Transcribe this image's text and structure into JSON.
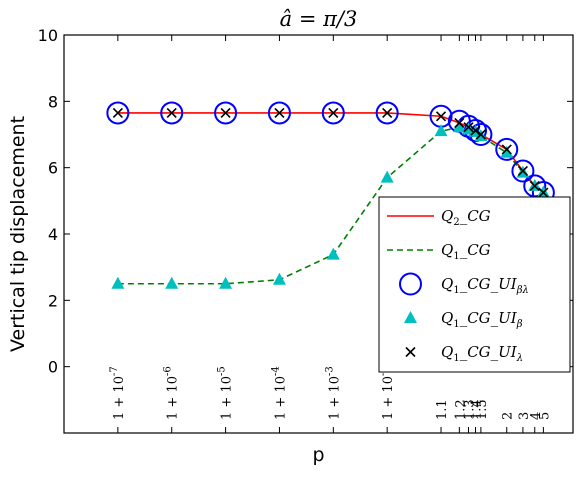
{
  "chart_data": {
    "type": "line",
    "title": "â = π/3",
    "xlabel": "p",
    "ylabel": "Vertical tip displacement",
    "ylim": [
      -2,
      10
    ],
    "yticks": [
      0,
      2,
      4,
      6,
      8,
      10
    ],
    "grid": false,
    "legend_position": "bottom-right",
    "categories": [
      "1+10^-7",
      "1+10^-6",
      "1+10^-5",
      "1+10^-4",
      "1+10^-3",
      "1+10^-2",
      "1.1",
      "1.2",
      "1.3",
      "1.4",
      "1.5",
      "2",
      "3",
      "4",
      "5"
    ],
    "category_labels": [
      {
        "base": "1 + 10",
        "exp": "-7"
      },
      {
        "base": "1 + 10",
        "exp": "-6"
      },
      {
        "base": "1 + 10",
        "exp": "-5"
      },
      {
        "base": "1 + 10",
        "exp": "-4"
      },
      {
        "base": "1 + 10",
        "exp": "-3"
      },
      {
        "base": "1 + 10",
        "exp": "-2"
      },
      {
        "base": "1.1",
        "exp": ""
      },
      {
        "base": "1.2",
        "exp": ""
      },
      {
        "base": "1.3",
        "exp": ""
      },
      {
        "base": "1.4",
        "exp": ""
      },
      {
        "base": "1.5",
        "exp": ""
      },
      {
        "base": "2",
        "exp": ""
      },
      {
        "base": "3",
        "exp": ""
      },
      {
        "base": "4",
        "exp": ""
      },
      {
        "base": "5",
        "exp": ""
      }
    ],
    "x_positions": [
      -7,
      -6,
      -5,
      -4,
      -3,
      -2,
      -1,
      -0.66,
      -0.49,
      -0.36,
      -0.26,
      0.22,
      0.52,
      0.74,
      0.9
    ],
    "xlim": [
      -8.0,
      1.45
    ],
    "series": [
      {
        "name": "Q_2_CG",
        "legend": {
          "base": "Q",
          "sub": "2",
          "rest": "_CG",
          "sub2": ""
        },
        "color": "#ff0000",
        "style": "solid",
        "marker": "none",
        "values": [
          7.65,
          7.65,
          7.65,
          7.65,
          7.65,
          7.65,
          7.55,
          7.35,
          7.22,
          7.12,
          7.0,
          6.55,
          5.9,
          5.45,
          5.25
        ]
      },
      {
        "name": "Q_1_CG",
        "legend": {
          "base": "Q",
          "sub": "1",
          "rest": "_CG",
          "sub2": ""
        },
        "color": "#008000",
        "style": "dashed",
        "marker": "none",
        "values": [
          2.5,
          2.5,
          2.5,
          2.62,
          3.38,
          5.7,
          7.1,
          7.22,
          7.15,
          7.08,
          6.95,
          6.45,
          5.85,
          5.45,
          5.25
        ]
      },
      {
        "name": "Q_1_CG_UI_βλ",
        "legend": {
          "base": "Q",
          "sub": "1",
          "rest": "_CG_UI",
          "sub2": "βλ"
        },
        "color": "#0000ff",
        "style": "none",
        "marker": "circle",
        "values": [
          7.65,
          7.65,
          7.65,
          7.65,
          7.65,
          7.65,
          7.55,
          7.4,
          7.25,
          7.12,
          7.0,
          6.55,
          5.9,
          5.45,
          5.25
        ]
      },
      {
        "name": "Q_1_CG_UI_β",
        "legend": {
          "base": "Q",
          "sub": "1",
          "rest": "_CG_UI",
          "sub2": "β"
        },
        "color": "#00bfbf",
        "style": "none",
        "marker": "triangle",
        "values": [
          2.5,
          2.5,
          2.5,
          2.62,
          3.38,
          5.7,
          7.1,
          7.22,
          7.15,
          7.08,
          6.95,
          6.45,
          5.85,
          5.45,
          5.25
        ]
      },
      {
        "name": "Q_1_CG_UI_λ",
        "legend": {
          "base": "Q",
          "sub": "1",
          "rest": "_CG_UI",
          "sub2": "λ"
        },
        "color": "#000000",
        "style": "none",
        "marker": "x",
        "values": [
          7.65,
          7.65,
          7.65,
          7.65,
          7.65,
          7.65,
          7.55,
          7.35,
          7.22,
          7.12,
          7.0,
          6.55,
          5.9,
          5.45,
          5.25
        ]
      }
    ]
  }
}
